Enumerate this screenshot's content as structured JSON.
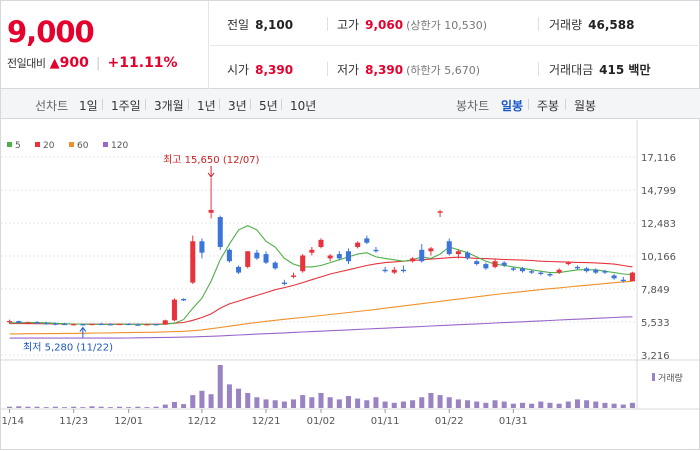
{
  "summary": {
    "price": "9,000",
    "change_label": "전일대비",
    "change_icon": "up-triangle-icon",
    "change_amount": "900",
    "change_rate": "+11.11%"
  },
  "stats": {
    "prev_close_label": "전일",
    "prev_close": "8,100",
    "high_label": "고가",
    "high": "9,060",
    "upper_limit": "(상한가 10,530)",
    "volume_label": "거래량",
    "volume": "46,588",
    "open_label": "시가",
    "open": "8,390",
    "low_label": "저가",
    "low": "8,390",
    "lower_limit": "(하한가 5,670)",
    "value_label": "거래대금",
    "value": "415 백만"
  },
  "toolbar": {
    "line_chart_label": "선차트",
    "periods": [
      "1일",
      "1주일",
      "3개월",
      "1년",
      "3년",
      "5년",
      "10년"
    ],
    "candle_label": "봉차트",
    "candle_types": [
      "일봉",
      "주봉",
      "월봉"
    ],
    "active_candle": "일봉"
  },
  "colors": {
    "up": "#e8333c",
    "down": "#3d74d9",
    "ma5": "#4fb04a",
    "ma20": "#e8333c",
    "ma60": "#f0902a",
    "ma120": "#9966cc",
    "volume": "#9a83c2"
  },
  "chart_data": {
    "type": "candlestick",
    "legend": [
      "5",
      "20",
      "60",
      "120"
    ],
    "yticks": [
      "17,116",
      "14,799",
      "12,483",
      "10,166",
      "7,849",
      "5,533",
      "3,216"
    ],
    "ylim": [
      3216,
      17116
    ],
    "xticks": [
      "11/14",
      "11/23",
      "12/01",
      "12/12",
      "12/21",
      "01/02",
      "01/11",
      "01/22",
      "01/31"
    ],
    "volume_label": "거래량",
    "annotations": {
      "max_text": "최고 15,650 (12/07)",
      "min_text": "최저 5,280 (11/22)",
      "max_value": 15650,
      "min_value": 5280
    },
    "candles": [
      [
        5520,
        5700,
        5400,
        5600
      ],
      [
        5600,
        5620,
        5450,
        5480
      ],
      [
        5480,
        5560,
        5380,
        5500
      ],
      [
        5500,
        5600,
        5400,
        5450
      ],
      [
        5450,
        5550,
        5350,
        5420
      ],
      [
        5420,
        5500,
        5300,
        5400
      ],
      [
        5400,
        5480,
        5320,
        5350
      ],
      [
        5350,
        5430,
        5300,
        5380
      ],
      [
        5380,
        5420,
        5280,
        5320
      ],
      [
        5320,
        5420,
        5300,
        5400
      ],
      [
        5400,
        5480,
        5350,
        5380
      ],
      [
        5380,
        5450,
        5320,
        5360
      ],
      [
        5360,
        5420,
        5320,
        5400
      ],
      [
        5400,
        5450,
        5330,
        5350
      ],
      [
        5350,
        5420,
        5300,
        5330
      ],
      [
        5330,
        5400,
        5300,
        5380
      ],
      [
        5380,
        5420,
        5330,
        5350
      ],
      [
        5350,
        5700,
        5330,
        5650
      ],
      [
        5650,
        7200,
        5600,
        7100
      ],
      [
        7150,
        7200,
        7000,
        7050
      ],
      [
        8300,
        11600,
        8200,
        11200
      ],
      [
        11200,
        11400,
        10000,
        10400
      ],
      [
        13200,
        15650,
        12800,
        13400
      ],
      [
        12900,
        13000,
        10600,
        10800
      ],
      [
        10600,
        10700,
        9700,
        9800
      ],
      [
        9400,
        9500,
        8900,
        9000
      ],
      [
        9400,
        10500,
        9300,
        10500
      ],
      [
        10400,
        10600,
        9900,
        10000
      ],
      [
        10300,
        10500,
        9600,
        9700
      ],
      [
        9700,
        9800,
        9200,
        9300
      ],
      [
        8300,
        8500,
        8100,
        8200
      ],
      [
        8700,
        9000,
        8600,
        8800
      ],
      [
        9100,
        10300,
        9000,
        10200
      ],
      [
        10400,
        10800,
        10200,
        10600
      ],
      [
        10800,
        11400,
        10700,
        11300
      ],
      [
        10000,
        10300,
        9800,
        10200
      ],
      [
        10300,
        10500,
        9900,
        10000
      ],
      [
        10500,
        10700,
        9600,
        9800
      ],
      [
        10800,
        11200,
        10700,
        11100
      ],
      [
        11400,
        11600,
        11000,
        11100
      ],
      [
        10600,
        10800,
        10400,
        10500
      ],
      [
        9200,
        9400,
        9000,
        9100
      ],
      [
        9000,
        9400,
        8900,
        9200
      ],
      [
        9200,
        9500,
        9000,
        9100
      ],
      [
        9800,
        10100,
        9700,
        10000
      ],
      [
        10600,
        11000,
        9700,
        9800
      ],
      [
        10500,
        10800,
        10200,
        10700
      ],
      [
        13200,
        13400,
        12900,
        13300
      ],
      [
        11200,
        11400,
        10200,
        10300
      ],
      [
        10300,
        10600,
        10000,
        10500
      ],
      [
        10400,
        10500,
        9900,
        10000
      ],
      [
        9800,
        9900,
        9500,
        9600
      ],
      [
        9600,
        9700,
        9200,
        9300
      ],
      [
        9400,
        10000,
        9300,
        9800
      ],
      [
        9700,
        9800,
        9400,
        9500
      ],
      [
        9300,
        9400,
        9100,
        9200
      ],
      [
        9300,
        9400,
        9000,
        9100
      ],
      [
        9100,
        9200,
        8900,
        9000
      ],
      [
        9000,
        9100,
        8800,
        8900
      ],
      [
        8900,
        9000,
        8700,
        8800
      ],
      [
        9000,
        9300,
        8900,
        9200
      ],
      [
        9600,
        9800,
        9500,
        9700
      ],
      [
        9400,
        9500,
        9200,
        9300
      ],
      [
        9300,
        9400,
        9000,
        9100
      ],
      [
        9200,
        9300,
        8900,
        9000
      ],
      [
        9100,
        9200,
        8900,
        9000
      ],
      [
        8800,
        8900,
        8500,
        8600
      ],
      [
        8500,
        8700,
        8300,
        8400
      ],
      [
        8390,
        9060,
        8390,
        9000
      ]
    ],
    "volumes": [
      3,
      4,
      3,
      3,
      2,
      3,
      2,
      3,
      2,
      4,
      3,
      2,
      3,
      2,
      3,
      2,
      3,
      8,
      14,
      9,
      30,
      40,
      32,
      100,
      55,
      45,
      35,
      25,
      20,
      18,
      15,
      20,
      30,
      25,
      35,
      25,
      20,
      28,
      22,
      18,
      25,
      15,
      12,
      15,
      18,
      25,
      35,
      30,
      25,
      20,
      18,
      15,
      12,
      18,
      15,
      10,
      12,
      10,
      15,
      12,
      10,
      15,
      20,
      18,
      15,
      12,
      10,
      8,
      12
    ],
    "ma5": [
      5480,
      5480,
      5490,
      5490,
      5480,
      5440,
      5410,
      5390,
      5380,
      5370,
      5370,
      5360,
      5370,
      5380,
      5370,
      5370,
      5360,
      5380,
      5450,
      5700,
      6500,
      7200,
      8400,
      9900,
      11000,
      12000,
      12300,
      12000,
      11200,
      10800,
      10000,
      9600,
      9400,
      9400,
      9500,
      9700,
      9900,
      10100,
      10300,
      10400,
      10100,
      10000,
      9900,
      9800,
      9900,
      10100,
      10000,
      10300,
      10800,
      10600,
      10400,
      10100,
      9800,
      9600,
      9500,
      9400,
      9300,
      9200,
      9100,
      9000,
      9000,
      9100,
      9200,
      9200,
      9200,
      9100,
      9000,
      8900,
      8850
    ],
    "ma20": [
      5420,
      5420,
      5420,
      5410,
      5410,
      5400,
      5400,
      5390,
      5390,
      5380,
      5380,
      5380,
      5380,
      5380,
      5380,
      5380,
      5380,
      5400,
      5450,
      5500,
      5650,
      5850,
      6100,
      6500,
      6800,
      7000,
      7200,
      7400,
      7600,
      7800,
      7950,
      8100,
      8300,
      8500,
      8700,
      8900,
      9050,
      9200,
      9350,
      9500,
      9620,
      9700,
      9750,
      9800,
      9850,
      9900,
      9950,
      10000,
      10050,
      10080,
      10050,
      10000,
      9980,
      9950,
      9920,
      9900,
      9880,
      9850,
      9800,
      9780,
      9760,
      9740,
      9720,
      9700,
      9680,
      9650,
      9600,
      9500,
      9400
    ],
    "ma60": [
      4700,
      4700,
      4710,
      4710,
      4720,
      4720,
      4730,
      4730,
      4740,
      4750,
      4760,
      4770,
      4780,
      4790,
      4800,
      4810,
      4820,
      4840,
      4860,
      4880,
      4920,
      4980,
      5060,
      5150,
      5240,
      5330,
      5420,
      5500,
      5580,
      5650,
      5720,
      5790,
      5850,
      5920,
      5990,
      6060,
      6130,
      6200,
      6270,
      6340,
      6420,
      6500,
      6580,
      6660,
      6740,
      6820,
      6900,
      6980,
      7060,
      7140,
      7220,
      7300,
      7380,
      7460,
      7530,
      7600,
      7670,
      7740,
      7810,
      7870,
      7930,
      7990,
      8050,
      8110,
      8170,
      8230,
      8290,
      8350,
      8400
    ],
    "ma120": [
      4400,
      4400,
      4400,
      4400,
      4400,
      4400,
      4400,
      4400,
      4400,
      4400,
      4400,
      4400,
      4400,
      4410,
      4420,
      4430,
      4440,
      4450,
      4460,
      4470,
      4490,
      4510,
      4530,
      4560,
      4590,
      4620,
      4650,
      4680,
      4710,
      4740,
      4770,
      4800,
      4830,
      4860,
      4890,
      4920,
      4950,
      4980,
      5010,
      5040,
      5070,
      5100,
      5130,
      5160,
      5190,
      5220,
      5250,
      5280,
      5310,
      5340,
      5370,
      5400,
      5430,
      5460,
      5490,
      5520,
      5550,
      5580,
      5610,
      5640,
      5670,
      5700,
      5730,
      5760,
      5790,
      5820,
      5850,
      5880,
      5900
    ]
  }
}
